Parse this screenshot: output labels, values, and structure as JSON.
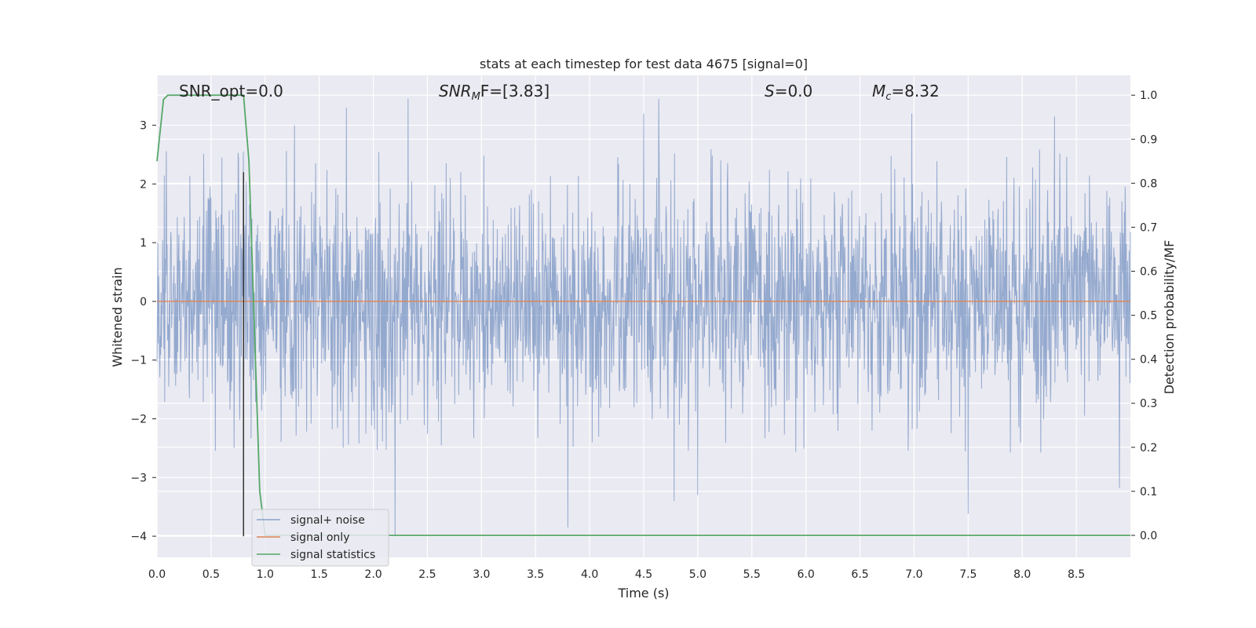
{
  "chart_data": {
    "type": "line",
    "title": "stats at each timestep for test data 4675 [signal=0]",
    "xlabel": "Time (s)",
    "ylabel": "Whitened strain",
    "y2label": "Detection probability/MF",
    "xlim": [
      0,
      9.0
    ],
    "ylim": [
      -4.36,
      3.85
    ],
    "y2lim": [
      -0.05,
      1.045
    ],
    "xticks": [
      0.0,
      0.5,
      1.0,
      1.5,
      2.0,
      2.5,
      3.0,
      3.5,
      4.0,
      4.5,
      5.0,
      5.5,
      6.0,
      6.5,
      7.0,
      7.5,
      8.0,
      8.5
    ],
    "xtick_labels": [
      "0.0",
      "0.5",
      "1.0",
      "1.5",
      "2.0",
      "2.5",
      "3.0",
      "3.5",
      "4.0",
      "4.5",
      "5.0",
      "5.5",
      "6.0",
      "6.5",
      "7.0",
      "7.5",
      "8.0",
      "8.5"
    ],
    "yticks": [
      3,
      2,
      1,
      0,
      -1,
      -2,
      -3,
      -4
    ],
    "ytick_labels": [
      "3",
      "2",
      "1",
      "0",
      "−1",
      "−2",
      "−3",
      "−4"
    ],
    "y2ticks": [
      1.0,
      0.9,
      0.8,
      0.7,
      0.6,
      0.5,
      0.4,
      0.3,
      0.2,
      0.1,
      0.0
    ],
    "y2tick_labels": [
      "1.0",
      "0.9",
      "0.8",
      "0.7",
      "0.6",
      "0.5",
      "0.4",
      "0.3",
      "0.2",
      "0.1",
      "0.0"
    ],
    "grid": true,
    "legend_position": "lower-left",
    "annotations": {
      "snr_opt": "SNR_opt=0.0",
      "snr_mf_base": "SNR",
      "snr_mf_sub": "M",
      "snr_mf_rest": "F=[3.83]",
      "s_base": "S",
      "s_rest": "=0.0",
      "mc_base": "M",
      "mc_sub": "c",
      "mc_rest": "=8.32"
    },
    "series": [
      {
        "name": "signal+ noise",
        "color": "#4c72b0",
        "axis": "left",
        "noise_std": 1.0,
        "noise_extremes": [
          [
            0.6,
            2.45
          ],
          [
            0.8,
            2.55
          ],
          [
            1.27,
            3.0
          ],
          [
            1.75,
            3.3
          ],
          [
            2.2,
            -4.0
          ],
          [
            2.32,
            3.45
          ],
          [
            3.8,
            -3.85
          ],
          [
            4.5,
            3.2
          ],
          [
            4.64,
            3.45
          ],
          [
            4.78,
            -3.4
          ],
          [
            5.0,
            -3.3
          ],
          [
            6.98,
            3.2
          ],
          [
            7.5,
            -3.62
          ],
          [
            8.3,
            3.15
          ],
          [
            8.9,
            -3.18
          ]
        ]
      },
      {
        "name": "signal only",
        "color": "#dd8452",
        "axis": "left",
        "x": [
          0.0,
          9.0
        ],
        "y": [
          0.0,
          0.0
        ]
      },
      {
        "name": "signal statistics",
        "color": "#55a868",
        "axis": "right",
        "x": [
          0.0,
          0.06,
          0.1,
          0.5,
          0.8,
          0.85,
          0.95,
          1.0,
          9.0
        ],
        "y": [
          0.85,
          0.99,
          1.0,
          1.0,
          1.0,
          0.85,
          0.1,
          0.0,
          0.0
        ]
      }
    ],
    "vline": {
      "x": 0.8,
      "ymin": -4.0,
      "ymax": 2.2,
      "color": "#333333"
    }
  }
}
